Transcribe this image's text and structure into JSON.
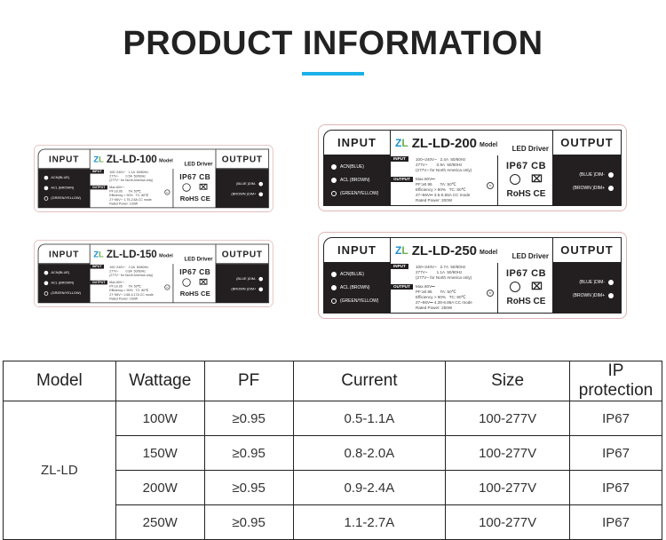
{
  "heading": {
    "title": "PRODUCT INFORMATION",
    "accent": "#1ab0e8"
  },
  "labels": [
    {
      "model": "ZL-LD-100",
      "in1": "100~240V~   1.1A  50/60Hz",
      "in2": "277V~        0.5A  50/60Hz",
      "cc": "27~56V⎓ 1.75-2.8A CC mode",
      "power": "Rated Power: 100W"
    },
    {
      "model": "ZL-LD-150",
      "in1": "100~240V~   2.0A  50/60Hz",
      "in2": "277V~        0.8A  50/60Hz",
      "cc": "27~56V⎓ 2.68-4.17A CC mode",
      "power": "Rated Power: 150W"
    },
    {
      "model": "ZL-LD-200",
      "in1": "100~240V~   2.4A  50/60Hz",
      "in2": "277V~        0.9A  50/60Hz",
      "cc": "27~56V⎓ 3.5-5.55A CC mode",
      "power": "Rated Power: 200W"
    },
    {
      "model": "ZL-LD-250",
      "in1": "100~240V~   2.7A  50/60Hz",
      "in2": "277V~        1.1A  50/60Hz",
      "cc": "27~56V⎓ 4.28-6.86A CC mode",
      "power": "Rated Power: 250W"
    }
  ],
  "label_common": {
    "input": "INPUT",
    "output": "OUTPUT",
    "model_word": "Model",
    "driver": "LED Driver",
    "in_tag": "INPUT",
    "out_tag": "OUTPUT",
    "na": "(277V~ for North America only)",
    "max": "Max.60V⎓",
    "pf": "PF:≥0.95       TA: 50℃",
    "eff": "Efficiency > 90%   TC: 80℃",
    "acn": "ACN(BLUE)",
    "acl": "ACL (BROWN)",
    "gnd": "(GREEN/YELLOW)",
    "dim1": "(BLUE )DIM-",
    "dim2": "(BROWN )DIM+",
    "ip": "IP67  CB",
    "rohs": "RoHS CE",
    "tc": "tc"
  },
  "table": {
    "headers": [
      "Model",
      "Wattage",
      "PF",
      "Current",
      "Size",
      "IP protection"
    ],
    "model": "ZL-LD",
    "rows": [
      [
        "100W",
        "≥0.95",
        "0.5-1.1A",
        "100-277V",
        "IP67"
      ],
      [
        "150W",
        "≥0.95",
        "0.8-2.0A",
        "100-277V",
        "IP67"
      ],
      [
        "200W",
        "≥0.95",
        "0.9-2.4A",
        "100-277V",
        "IP67"
      ],
      [
        "250W",
        "≥0.95",
        "1.1-2.7A",
        "100-277V",
        "IP67"
      ]
    ]
  }
}
